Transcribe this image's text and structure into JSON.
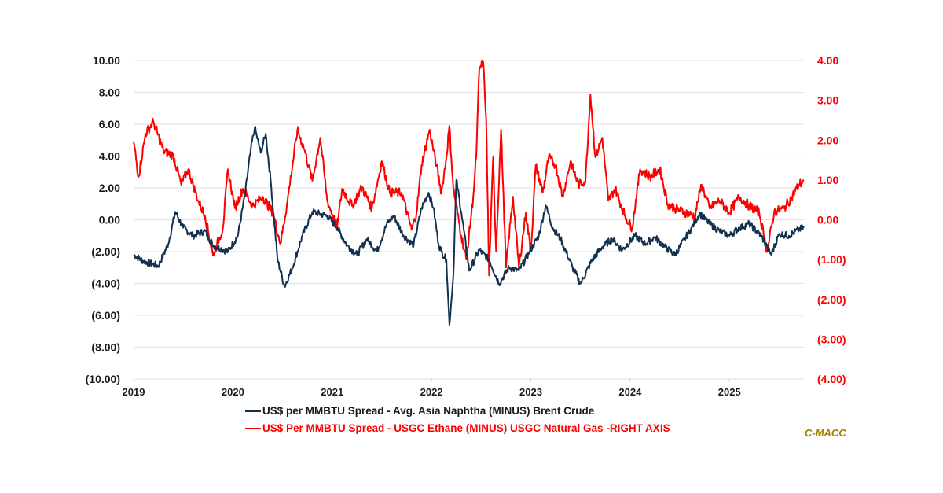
{
  "chart_data": {
    "type": "line",
    "title": "",
    "xlabel": "",
    "ylabel": "",
    "x_ticks": [
      "2019",
      "2020",
      "2021",
      "2022",
      "2023",
      "2024",
      "2025"
    ],
    "x_range": [
      2019.0,
      2025.75
    ],
    "left_axis": {
      "ylim": [
        -10,
        10
      ],
      "ticks": [
        "10.00",
        "8.00",
        "6.00",
        "4.00",
        "2.00",
        "0.00",
        "(2.00)",
        "(4.00)",
        "(6.00)",
        "(8.00)",
        "(10.00)"
      ],
      "color": "#1a1a1a"
    },
    "right_axis": {
      "ylim": [
        -4,
        4
      ],
      "ticks": [
        "4.00",
        "3.00",
        "2.00",
        "1.00",
        "0.00",
        "(1.00)",
        "(2.00)",
        "(3.00)",
        "(4.00)"
      ],
      "color": "#ff0000"
    },
    "grid": true,
    "legend_position": "bottom",
    "series": [
      {
        "name": "US$ per MMBTU Spread - Avg. Asia Naphtha (MINUS) Brent Crude",
        "axis": "left",
        "color": "#14304f",
        "x": [
          2019.0,
          2019.1,
          2019.25,
          2019.35,
          2019.42,
          2019.5,
          2019.6,
          2019.72,
          2019.8,
          2019.95,
          2020.05,
          2020.12,
          2020.18,
          2020.22,
          2020.28,
          2020.33,
          2020.38,
          2020.45,
          2020.52,
          2020.6,
          2020.7,
          2020.8,
          2020.95,
          2021.05,
          2021.15,
          2021.25,
          2021.35,
          2021.45,
          2021.55,
          2021.62,
          2021.72,
          2021.82,
          2021.9,
          2021.97,
          2022.02,
          2022.07,
          2022.1,
          2022.15,
          2022.18,
          2022.22,
          2022.25,
          2022.3,
          2022.38,
          2022.48,
          2022.58,
          2022.68,
          2022.78,
          2022.88,
          2022.98,
          2023.08,
          2023.15,
          2023.22,
          2023.3,
          2023.42,
          2023.5,
          2023.62,
          2023.72,
          2023.82,
          2023.92,
          2024.05,
          2024.15,
          2024.25,
          2024.35,
          2024.45,
          2024.55,
          2024.62,
          2024.7,
          2024.8,
          2024.9,
          2025.0,
          2025.1,
          2025.2,
          2025.32,
          2025.42,
          2025.5,
          2025.6,
          2025.7,
          2025.75
        ],
        "values": [
          -2.2,
          -2.6,
          -2.9,
          -1.5,
          0.5,
          -0.5,
          -1.0,
          -0.7,
          -1.6,
          -2.0,
          -1.0,
          1.5,
          4.4,
          5.8,
          4.2,
          5.4,
          2.5,
          -2.5,
          -4.2,
          -3.0,
          -1.0,
          0.5,
          0.25,
          -0.5,
          -1.6,
          -2.2,
          -1.2,
          -2.0,
          -0.25,
          0.25,
          -1.0,
          -1.6,
          0.75,
          1.7,
          0.75,
          -1.5,
          -2.0,
          -2.5,
          -6.6,
          -3.5,
          2.5,
          0.5,
          -3.2,
          -1.9,
          -2.5,
          -4.0,
          -3.0,
          -3.2,
          -2.1,
          -1.0,
          0.9,
          -0.5,
          -1.2,
          -3.0,
          -4.0,
          -2.5,
          -1.7,
          -1.2,
          -1.9,
          -1.0,
          -1.5,
          -1.1,
          -1.7,
          -2.2,
          -1.2,
          -0.5,
          0.4,
          -0.25,
          -0.7,
          -1.0,
          -0.5,
          -0.25,
          -1.0,
          -2.2,
          -0.9,
          -1.0,
          -0.6,
          -0.5
        ]
      },
      {
        "name": "US$ Per MMBTU Spread - USGC Ethane (MINUS) USGC Natural Gas -RIGHT AXIS",
        "axis": "right",
        "color": "#ff0000",
        "x": [
          2019.0,
          2019.05,
          2019.12,
          2019.2,
          2019.3,
          2019.4,
          2019.48,
          2019.55,
          2019.65,
          2019.72,
          2019.8,
          2019.9,
          2019.95,
          2020.02,
          2020.1,
          2020.2,
          2020.3,
          2020.4,
          2020.48,
          2020.55,
          2020.65,
          2020.72,
          2020.8,
          2020.88,
          2020.95,
          2021.05,
          2021.1,
          2021.2,
          2021.3,
          2021.4,
          2021.5,
          2021.58,
          2021.7,
          2021.8,
          2021.85,
          2021.9,
          2021.98,
          2022.05,
          2022.1,
          2022.15,
          2022.18,
          2022.22,
          2022.3,
          2022.35,
          2022.42,
          2022.45,
          2022.48,
          2022.52,
          2022.55,
          2022.58,
          2022.62,
          2022.65,
          2022.7,
          2022.75,
          2022.82,
          2022.88,
          2022.95,
          2023.0,
          2023.05,
          2023.12,
          2023.18,
          2023.25,
          2023.32,
          2023.4,
          2023.48,
          2023.55,
          2023.6,
          2023.65,
          2023.72,
          2023.78,
          2023.85,
          2023.95,
          2024.02,
          2024.1,
          2024.2,
          2024.3,
          2024.38,
          2024.45,
          2024.55,
          2024.65,
          2024.72,
          2024.8,
          2024.9,
          2025.0,
          2025.1,
          2025.2,
          2025.3,
          2025.38,
          2025.45,
          2025.55,
          2025.62,
          2025.7,
          2025.75
        ],
        "values": [
          1.97,
          1.08,
          2.16,
          2.46,
          1.73,
          1.61,
          0.88,
          1.27,
          0.48,
          0.09,
          -0.9,
          -0.2,
          1.27,
          0.29,
          0.78,
          0.35,
          0.58,
          0.19,
          -0.6,
          0.48,
          2.26,
          1.77,
          0.98,
          2.06,
          0.48,
          -0.2,
          0.78,
          0.35,
          0.82,
          0.29,
          1.47,
          0.68,
          0.68,
          -0.25,
          0.19,
          1.37,
          2.26,
          1.37,
          0.68,
          1.57,
          2.36,
          0.78,
          -0.4,
          -1.0,
          0.58,
          1.57,
          3.75,
          3.98,
          2.56,
          -1.4,
          1.57,
          -0.8,
          2.26,
          -1.2,
          0.58,
          -1.2,
          0.19,
          -0.8,
          1.37,
          0.68,
          1.57,
          1.37,
          0.58,
          1.47,
          0.88,
          0.98,
          3.15,
          1.57,
          2.06,
          0.48,
          0.78,
          0.09,
          -0.2,
          1.27,
          1.08,
          1.27,
          0.39,
          0.29,
          0.19,
          0.09,
          0.88,
          0.29,
          0.48,
          0.19,
          0.58,
          0.35,
          0.19,
          -0.8,
          0.19,
          0.29,
          0.54,
          0.88,
          1.0
        ]
      }
    ]
  },
  "legend": {
    "items": [
      {
        "label": "US$ per MMBTU Spread - Avg. Asia Naphtha (MINUS) Brent Crude",
        "color": "#14304f",
        "text_color": "#1a1a1a"
      },
      {
        "label": "US$ Per MMBTU Spread - USGC Ethane (MINUS) USGC Natural Gas -RIGHT AXIS",
        "color": "#ff0000",
        "text_color": "#ff0000"
      }
    ]
  },
  "watermark": {
    "text": "C-MACC",
    "color": "#a08000"
  }
}
